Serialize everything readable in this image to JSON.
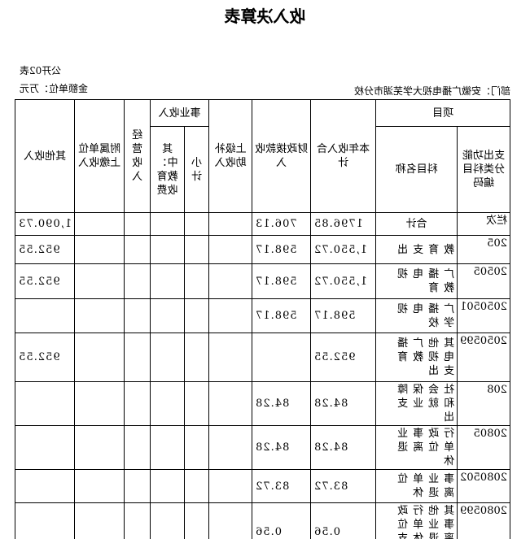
{
  "title": "收入决算表",
  "form_code": "公开02表",
  "department": "部门：安徽广播电视大学芜湖市分校",
  "unit": "金额单位：万元",
  "headers": {
    "project": "项目",
    "func_code": "支出功能分类科目编码",
    "subject_name": "科目名称",
    "total": "本年收入合计",
    "fiscal": "财政拨款收入",
    "upper": "上级补助收入",
    "business": "事业收入",
    "subtotal": "小计",
    "edu_fee": "其中：教育收费",
    "operating": "经营收入",
    "affiliated": "附属单位上缴收入",
    "other": "其他收入"
  },
  "rows": [
    {
      "code": "栏次",
      "name": "合计",
      "total": "1796.85",
      "fiscal": "706.13",
      "other": "1,090.73"
    },
    {
      "code": "205",
      "name": "教育支出",
      "total": "1,550.72",
      "fiscal": "598.17",
      "other": "952.55"
    },
    {
      "code": "20505",
      "name": "广播电视教育",
      "total": "1,550.72",
      "fiscal": "598.17",
      "other": "952.55"
    },
    {
      "code": "2050501",
      "name": "广播电视学校",
      "total": "598.17",
      "fiscal": "598.17",
      "other": ""
    },
    {
      "code": "2050599",
      "name": "其他广播电视教育支出",
      "total": "952.55",
      "fiscal": "",
      "other": "952.55"
    },
    {
      "code": "208",
      "name": "社会保障和就业支出",
      "total": "84.28",
      "fiscal": "84.28",
      "other": ""
    },
    {
      "code": "20805",
      "name": "行政事业单位离退休",
      "total": "84.28",
      "fiscal": "84.28",
      "other": ""
    },
    {
      "code": "2080502",
      "name": "事业单位离退休",
      "total": "83.72",
      "fiscal": "83.72",
      "other": ""
    },
    {
      "code": "2080599",
      "name": "其他行政事业单位离退休支出",
      "total": "0.56",
      "fiscal": "0.56",
      "other": ""
    }
  ]
}
